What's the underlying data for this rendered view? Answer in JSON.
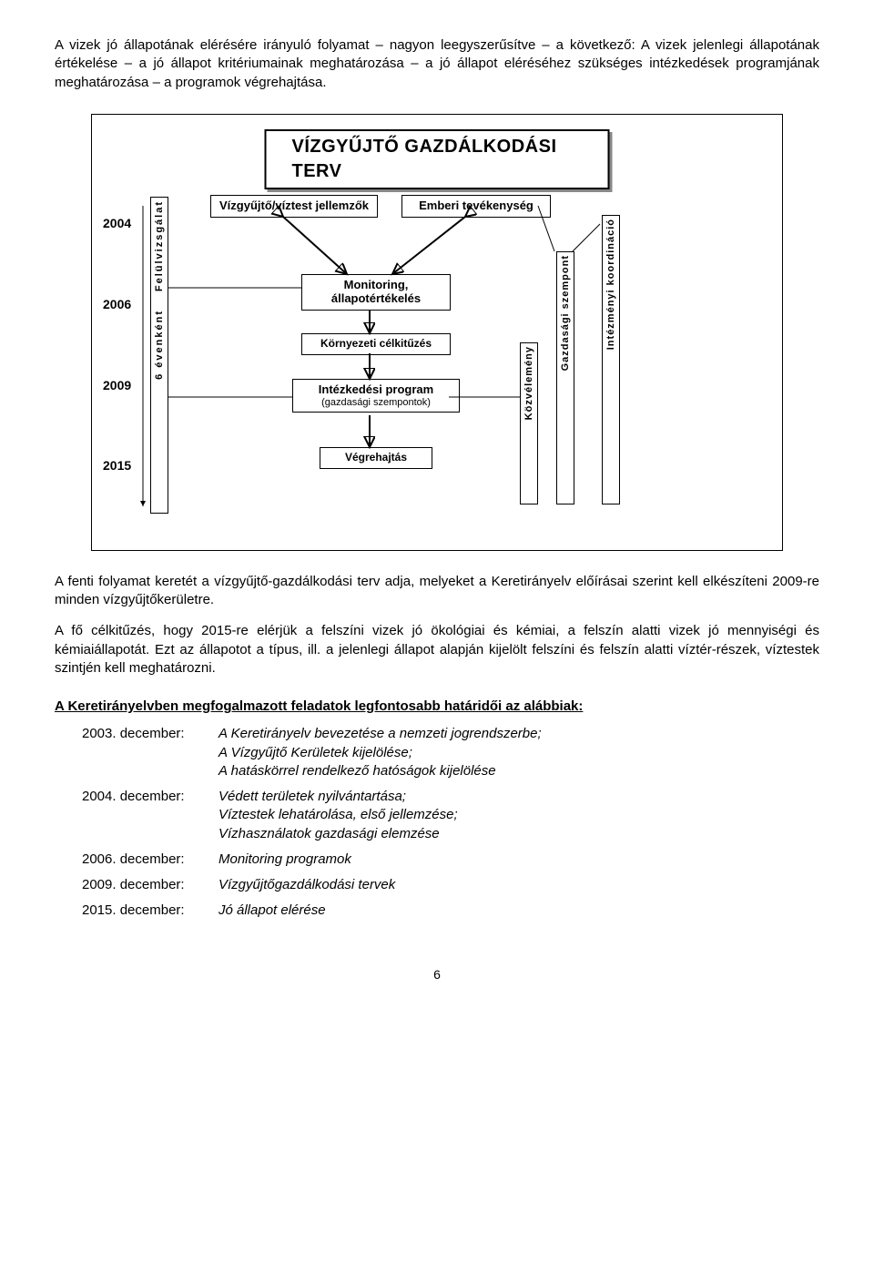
{
  "para1": "A vizek jó állapotának elérésére irányuló folyamat – nagyon leegyszerűsítve – a következő: A vizek jelenlegi állapotának értékelése – a jó állapot kritériumainak meghatározása – a jó állapot eléréséhez szükséges intézkedések programjának meghatározása – a programok végrehajtása.",
  "diagram": {
    "title": "VÍZGYŰJTŐ  GAZDÁLKODÁSI TERV",
    "years": [
      "2004",
      "2006",
      "2009",
      "2015"
    ],
    "left_box_top": "Felülvizsgálat",
    "left_box_bottom": "6 évenként",
    "nodes": {
      "n1": "Vízgyűjtő/víztest jellemzők",
      "n2": "Emberi tevékenység",
      "n3": "Monitoring, állapotértékelés",
      "n4": "Környezeti célkitűzés",
      "n5_main": "Intézkedési program",
      "n5_sub": "(gazdasági szempontok)",
      "n6": "Végrehajtás"
    },
    "right_boxes": {
      "r1": "Közvélemény",
      "r2": "Gazdasági szempont",
      "r3": "Intézményi koordináció"
    }
  },
  "para2": "A fenti folyamat keretét a vízgyűjtő-gazdálkodási terv adja, melyeket a Keretirányelv előírásai szerint kell elkészíteni 2009-re minden vízgyűjtőkerületre.",
  "para3": "A fő célkitűzés, hogy 2015-re elérjük a felszíni vizek jó ökológiai és kémiai, a felszín alatti vizek jó mennyiségi és kémiaiállapotát. Ezt az állapotot a típus, ill. a jelenlegi állapot alapján kijelölt felszíni és felszín alatti víztér-részek, víztestek szintjén kell meghatározni.",
  "heading": "A Keretirányelvben megfogalmazott feladatok legfontosabb határidői az alábbiak:",
  "deadlines": [
    {
      "date": "2003. december:",
      "desc": "A Keretirányelv bevezetése a nemzeti jogrendszerbe;\nA Vízgyűjtő Kerületek kijelölése;\nA hatáskörrel rendelkező hatóságok kijelölése"
    },
    {
      "date": "2004. december:",
      "desc": "Védett területek nyilvántartása;\nVíztestek lehatárolása, első jellemzése;\nVízhasználatok gazdasági elemzése"
    },
    {
      "date": "2006. december:",
      "desc": "Monitoring programok"
    },
    {
      "date": "2009. december:",
      "desc": "Vízgyűjtőgazdálkodási tervek"
    },
    {
      "date": "2015. december:",
      "desc": "Jó állapot elérése"
    }
  ],
  "page_number": "6"
}
